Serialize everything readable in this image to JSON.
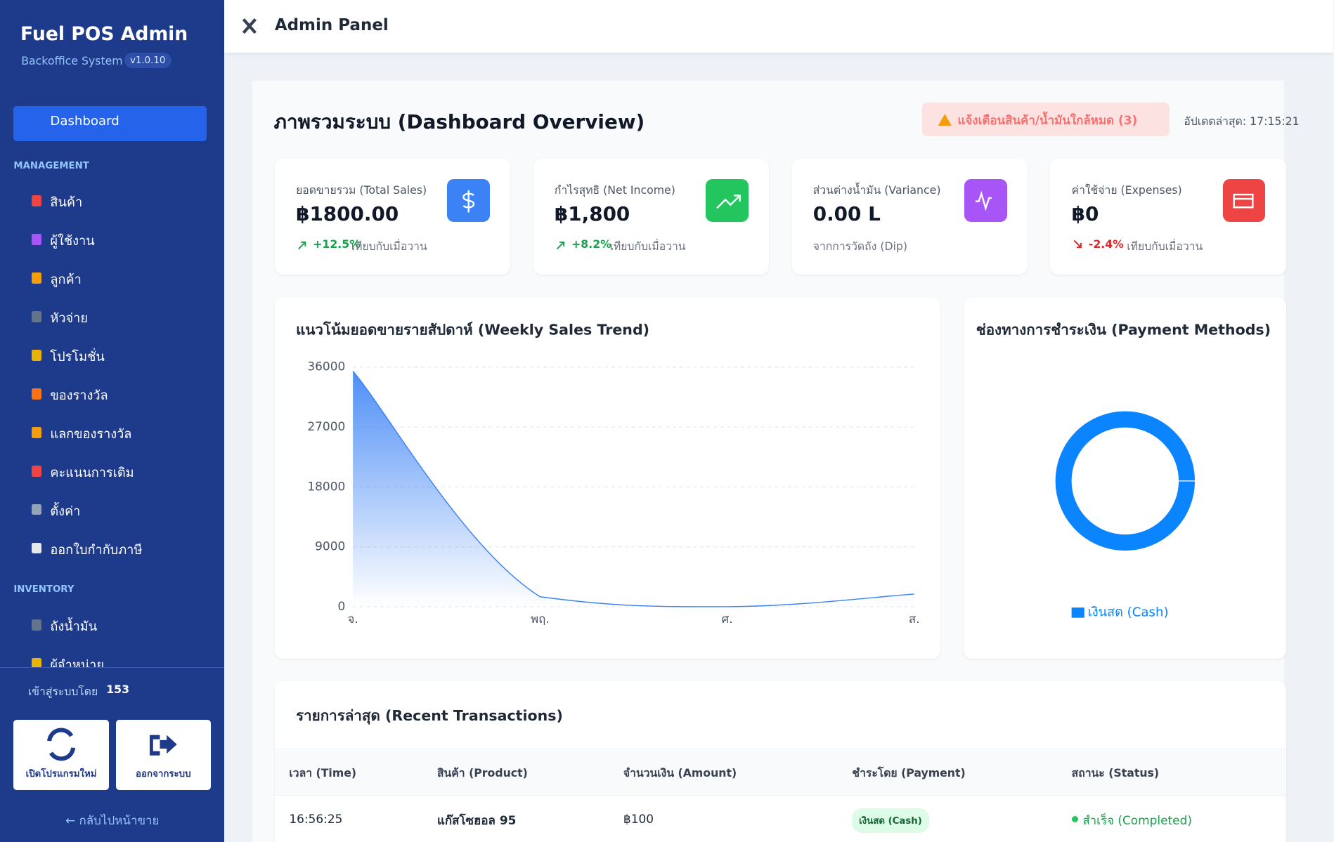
{
  "sidebar": {
    "brand": "Fuel POS Admin",
    "subtitle": "Backoffice System",
    "version": "v1.0.10",
    "active": "Dashboard",
    "sections": [
      {
        "title": "MANAGEMENT",
        "items": [
          "สินค้า",
          "ผู้ใช้งาน",
          "ลูกค้า",
          "หัวจ่าย",
          "โปรโมชั่น",
          "ของรางวัล",
          "แลกของรางวัล",
          "คะแนนการเติม",
          "ตั้งค่า",
          "ออกใบกำกับภาษี"
        ]
      },
      {
        "title": "INVENTORY",
        "items": [
          "ถังน้ำมัน",
          "ผู้จำหน่าย"
        ]
      }
    ],
    "login_label": "เข้าสู่ระบบโดย",
    "login_user": "153",
    "buttons": [
      "เปิดโปรแกรมใหม่",
      "ออกจากระบบ"
    ],
    "back": "← กลับไปหน้าขาย"
  },
  "header": {
    "title": "Admin Panel"
  },
  "dashboard": {
    "title": "ภาพรวมระบบ (Dashboard Overview)",
    "alert": "แจ้งเตือนสินค้า/น้ำมันใกล้หมด (3)",
    "updated": "อัปเดตล่าสุด: 17:15:21",
    "cards": [
      {
        "label": "ยอดขายรวม (Total Sales)",
        "value": "฿1800.00",
        "change": "+12.5%",
        "note": "เทียบกับเมื่อวาน",
        "color": "#3b82f6",
        "trend": "up"
      },
      {
        "label": "กำไรสุทธิ (Net Income)",
        "value": "฿1,800",
        "change": "+8.2%",
        "note": "เทียบกับเมื่อวาน",
        "color": "#22c55e",
        "trend": "up"
      },
      {
        "label": "ส่วนต่างน้ำมัน (Variance)",
        "value": "0.00 L",
        "note": "จากการวัดถัง (Dip)",
        "color": "#a855f7"
      },
      {
        "label": "ค่าใช้จ่าย (Expenses)",
        "value": "฿0",
        "change": "-2.4%",
        "note": "เทียบกับเมื่อวาน",
        "color": "#ef4444",
        "trend": "down"
      }
    ]
  },
  "chart_data": [
    {
      "type": "area",
      "title": "แนวโน้มยอดขายรายสัปดาห์ (Weekly Sales Trend)",
      "categories": [
        "จ.",
        "พฤ.",
        "ศ.",
        "ส."
      ],
      "values": [
        35400,
        1500,
        0,
        1900
      ],
      "color": "#3b82f6",
      "ylim": [
        0,
        36000
      ],
      "yticks": [
        0,
        9000,
        18000,
        27000,
        36000
      ],
      "grid": true
    },
    {
      "type": "doughnut",
      "title": "ช่องทางการชำระเงิน (Payment Methods)",
      "categories": [
        "เงินสด (Cash)"
      ],
      "values": [
        1800
      ],
      "colors": [
        "#0a84ff"
      ],
      "legend": "bottom"
    }
  ],
  "transactions": {
    "title": "รายการล่าสุด (Recent Transactions)",
    "columns": [
      "เวลา (Time)",
      "สินค้า (Product)",
      "จำนวนเงิน (Amount)",
      "ชำระโดย (Payment)",
      "สถานะ (Status)"
    ],
    "rows": [
      [
        "16:56:25",
        "แก๊สโซฮอล 95",
        "฿100",
        "เงินสด (Cash)",
        "สำเร็จ (Completed)"
      ]
    ]
  }
}
